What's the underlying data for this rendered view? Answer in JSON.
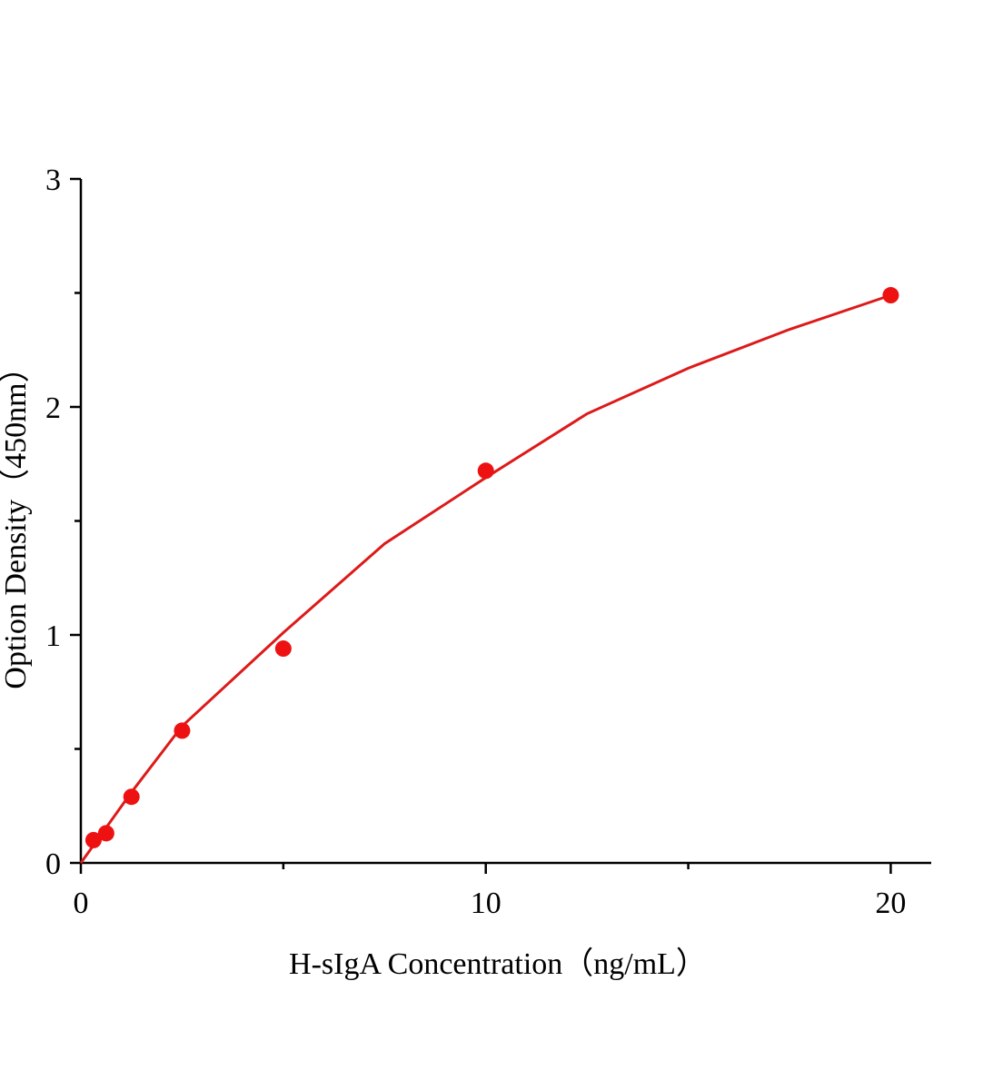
{
  "chart_data": {
    "type": "scatter",
    "x_label": "H-sIgA Concentration（ng/mL）",
    "y_label": "Option Density（450nm）",
    "x": [
      0.3125,
      0.625,
      1.25,
      2.5,
      5,
      10,
      20
    ],
    "values": [
      0.1,
      0.13,
      0.29,
      0.58,
      0.94,
      1.72,
      2.49
    ],
    "color": "#ee1111",
    "fit": {
      "x": [
        0,
        1.25,
        2.5,
        5,
        7.5,
        10,
        12.5,
        15,
        17.5,
        20
      ],
      "values": [
        0,
        0.31,
        0.6,
        1.01,
        1.4,
        1.69,
        1.97,
        2.17,
        2.34,
        2.49
      ],
      "color": "#dd1a1a"
    },
    "xlim": [
      0,
      21
    ],
    "ylim": [
      0,
      3
    ],
    "xticks": [
      0,
      10,
      20
    ],
    "yticks": [
      0,
      1,
      2,
      3
    ],
    "xminorticks": [
      5,
      15
    ],
    "yminorticks": [
      0.5,
      1.5,
      2.5
    ],
    "grid": false
  }
}
